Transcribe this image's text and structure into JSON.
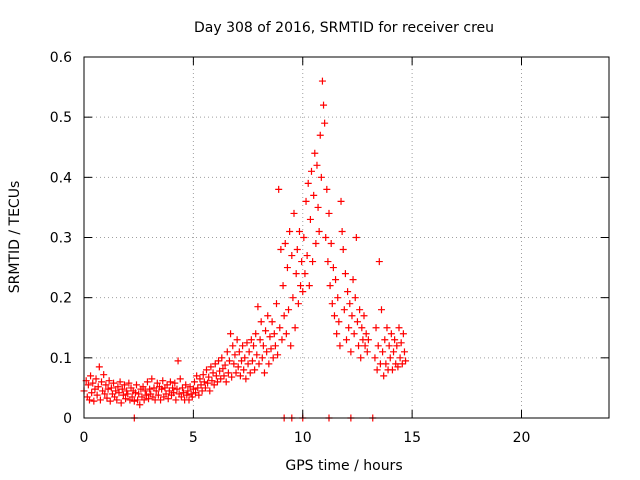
{
  "chart_data": {
    "type": "scatter",
    "title": "Day 308 of 2016, SRMTID for receiver creu",
    "xlabel": "GPS time / hours",
    "ylabel": "SRMTID / TECUs",
    "xlim": [
      0,
      24
    ],
    "ylim": [
      0,
      0.6
    ],
    "xticks": [
      0,
      5,
      10,
      15,
      20
    ],
    "xtick_labels": [
      "0",
      "5",
      "10",
      "15",
      "20"
    ],
    "yticks": [
      0,
      0.1,
      0.2,
      0.3,
      0.4,
      0.5,
      0.6
    ],
    "ytick_labels": [
      "0",
      "0.1",
      "0.2",
      "0.3",
      "0.4",
      "0.5",
      "0.6"
    ],
    "grid": true,
    "grid_style": "dotted",
    "marker": "+",
    "series": [
      {
        "name": "SRMTID",
        "color": "#ff0000",
        "points": [
          [
            0.0,
            0.045
          ],
          [
            0.1,
            0.062
          ],
          [
            0.15,
            0.035
          ],
          [
            0.2,
            0.055
          ],
          [
            0.25,
            0.03
          ],
          [
            0.3,
            0.07
          ],
          [
            0.35,
            0.042
          ],
          [
            0.4,
            0.058
          ],
          [
            0.45,
            0.028
          ],
          [
            0.5,
            0.048
          ],
          [
            0.55,
            0.065
          ],
          [
            0.6,
            0.038
          ],
          [
            0.65,
            0.052
          ],
          [
            0.7,
            0.085
          ],
          [
            0.75,
            0.03
          ],
          [
            0.8,
            0.06
          ],
          [
            0.85,
            0.045
          ],
          [
            0.9,
            0.072
          ],
          [
            0.95,
            0.04
          ],
          [
            1.0,
            0.055
          ],
          [
            1.05,
            0.033
          ],
          [
            1.1,
            0.048
          ],
          [
            1.15,
            0.062
          ],
          [
            1.2,
            0.028
          ],
          [
            1.25,
            0.05
          ],
          [
            1.3,
            0.04
          ],
          [
            1.35,
            0.058
          ],
          [
            1.4,
            0.035
          ],
          [
            1.45,
            0.045
          ],
          [
            1.5,
            0.03
          ],
          [
            1.55,
            0.052
          ],
          [
            1.6,
            0.042
          ],
          [
            1.65,
            0.06
          ],
          [
            1.7,
            0.025
          ],
          [
            1.75,
            0.048
          ],
          [
            1.8,
            0.038
          ],
          [
            1.85,
            0.055
          ],
          [
            1.9,
            0.032
          ],
          [
            1.95,
            0.045
          ],
          [
            2.0,
            0.04
          ],
          [
            2.05,
            0.058
          ],
          [
            2.1,
            0.03
          ],
          [
            2.15,
            0.05
          ],
          [
            2.2,
            0.035
          ],
          [
            2.25,
            0.045
          ],
          [
            2.3,
            0.028
          ],
          [
            2.35,
            0.042
          ],
          [
            2.4,
            0.055
          ],
          [
            2.45,
            0.03
          ],
          [
            2.5,
            0.04
          ],
          [
            2.55,
            0.022
          ],
          [
            2.6,
            0.048
          ],
          [
            2.65,
            0.035
          ],
          [
            2.7,
            0.052
          ],
          [
            2.75,
            0.03
          ],
          [
            2.8,
            0.045
          ],
          [
            2.85,
            0.038
          ],
          [
            2.9,
            0.06
          ],
          [
            2.95,
            0.032
          ],
          [
            3.0,
            0.048
          ],
          [
            3.05,
            0.04
          ],
          [
            3.1,
            0.065
          ],
          [
            3.15,
            0.035
          ],
          [
            3.2,
            0.05
          ],
          [
            3.25,
            0.03
          ],
          [
            3.3,
            0.045
          ],
          [
            3.35,
            0.058
          ],
          [
            3.4,
            0.038
          ],
          [
            3.45,
            0.052
          ],
          [
            3.5,
            0.03
          ],
          [
            3.55,
            0.048
          ],
          [
            3.6,
            0.062
          ],
          [
            3.65,
            0.035
          ],
          [
            3.7,
            0.05
          ],
          [
            3.75,
            0.04
          ],
          [
            3.8,
            0.055
          ],
          [
            3.85,
            0.032
          ],
          [
            3.9,
            0.045
          ],
          [
            3.95,
            0.06
          ],
          [
            4.0,
            0.038
          ],
          [
            4.05,
            0.05
          ],
          [
            4.1,
            0.042
          ],
          [
            4.15,
            0.058
          ],
          [
            4.2,
            0.03
          ],
          [
            4.25,
            0.048
          ],
          [
            4.3,
            0.095
          ],
          [
            4.35,
            0.04
          ],
          [
            4.4,
            0.065
          ],
          [
            4.45,
            0.035
          ],
          [
            4.5,
            0.05
          ],
          [
            4.55,
            0.042
          ],
          [
            4.6,
            0.03
          ],
          [
            4.65,
            0.055
          ],
          [
            4.7,
            0.038
          ],
          [
            4.75,
            0.045
          ],
          [
            4.8,
            0.03
          ],
          [
            4.85,
            0.052
          ],
          [
            4.9,
            0.04
          ],
          [
            4.95,
            0.035
          ],
          [
            5.0,
            0.048
          ],
          [
            5.05,
            0.06
          ],
          [
            5.1,
            0.042
          ],
          [
            5.15,
            0.07
          ],
          [
            5.2,
            0.05
          ],
          [
            5.25,
            0.038
          ],
          [
            5.3,
            0.065
          ],
          [
            5.35,
            0.055
          ],
          [
            5.4,
            0.045
          ],
          [
            5.45,
            0.072
          ],
          [
            5.5,
            0.06
          ],
          [
            5.55,
            0.05
          ],
          [
            5.6,
            0.08
          ],
          [
            5.65,
            0.058
          ],
          [
            5.7,
            0.068
          ],
          [
            5.75,
            0.045
          ],
          [
            5.8,
            0.085
          ],
          [
            5.85,
            0.062
          ],
          [
            5.9,
            0.075
          ],
          [
            5.95,
            0.055
          ],
          [
            6.0,
            0.09
          ],
          [
            6.05,
            0.07
          ],
          [
            6.1,
            0.06
          ],
          [
            6.15,
            0.095
          ],
          [
            6.2,
            0.078
          ],
          [
            6.25,
            0.065
          ],
          [
            6.3,
            0.1
          ],
          [
            6.35,
            0.082
          ],
          [
            6.4,
            0.07
          ],
          [
            6.45,
            0.088
          ],
          [
            6.5,
            0.06
          ],
          [
            6.55,
            0.11
          ],
          [
            6.6,
            0.075
          ],
          [
            6.65,
            0.095
          ],
          [
            6.7,
            0.14
          ],
          [
            6.75,
            0.068
          ],
          [
            6.8,
            0.12
          ],
          [
            6.85,
            0.09
          ],
          [
            6.9,
            0.105
          ],
          [
            6.95,
            0.075
          ],
          [
            7.0,
            0.13
          ],
          [
            7.05,
            0.085
          ],
          [
            7.1,
            0.11
          ],
          [
            7.15,
            0.07
          ],
          [
            7.2,
            0.095
          ],
          [
            7.25,
            0.12
          ],
          [
            7.3,
            0.08
          ],
          [
            7.35,
            0.1
          ],
          [
            7.4,
            0.065
          ],
          [
            7.45,
            0.125
          ],
          [
            7.5,
            0.09
          ],
          [
            7.55,
            0.11
          ],
          [
            7.6,
            0.075
          ],
          [
            7.65,
            0.13
          ],
          [
            7.7,
            0.095
          ],
          [
            7.75,
            0.12
          ],
          [
            7.8,
            0.08
          ],
          [
            7.85,
            0.14
          ],
          [
            7.9,
            0.105
          ],
          [
            7.95,
            0.185
          ],
          [
            8.0,
            0.09
          ],
          [
            8.05,
            0.13
          ],
          [
            8.1,
            0.16
          ],
          [
            8.15,
            0.1
          ],
          [
            8.2,
            0.12
          ],
          [
            8.25,
            0.075
          ],
          [
            8.3,
            0.145
          ],
          [
            8.35,
            0.11
          ],
          [
            8.4,
            0.17
          ],
          [
            8.45,
            0.09
          ],
          [
            8.5,
            0.135
          ],
          [
            8.55,
            0.115
          ],
          [
            8.6,
            0.16
          ],
          [
            8.65,
            0.1
          ],
          [
            8.7,
            0.14
          ],
          [
            8.75,
            0.12
          ],
          [
            8.8,
            0.19
          ],
          [
            8.85,
            0.105
          ],
          [
            8.9,
            0.38
          ],
          [
            8.95,
            0.15
          ],
          [
            9.0,
            0.28
          ],
          [
            9.05,
            0.13
          ],
          [
            9.1,
            0.22
          ],
          [
            9.15,
            0.17
          ],
          [
            9.2,
            0.29
          ],
          [
            9.25,
            0.14
          ],
          [
            9.3,
            0.25
          ],
          [
            9.35,
            0.18
          ],
          [
            9.4,
            0.31
          ],
          [
            9.45,
            0.12
          ],
          [
            9.5,
            0.27
          ],
          [
            9.55,
            0.2
          ],
          [
            9.6,
            0.34
          ],
          [
            9.65,
            0.15
          ],
          [
            9.7,
            0.24
          ],
          [
            9.75,
            0.28
          ],
          [
            9.8,
            0.19
          ],
          [
            9.85,
            0.31
          ],
          [
            9.9,
            0.22
          ],
          [
            9.95,
            0.26
          ],
          [
            10.0,
            0.21
          ],
          [
            10.05,
            0.3
          ],
          [
            10.1,
            0.24
          ],
          [
            10.15,
            0.36
          ],
          [
            10.2,
            0.27
          ],
          [
            10.25,
            0.39
          ],
          [
            10.3,
            0.22
          ],
          [
            10.35,
            0.33
          ],
          [
            10.4,
            0.41
          ],
          [
            10.45,
            0.26
          ],
          [
            10.5,
            0.37
          ],
          [
            10.55,
            0.44
          ],
          [
            10.6,
            0.29
          ],
          [
            10.65,
            0.42
          ],
          [
            10.7,
            0.35
          ],
          [
            10.75,
            0.31
          ],
          [
            10.8,
            0.47
          ],
          [
            10.85,
            0.4
          ],
          [
            10.9,
            0.56
          ],
          [
            10.95,
            0.52
          ],
          [
            11.0,
            0.49
          ],
          [
            11.05,
            0.3
          ],
          [
            11.1,
            0.38
          ],
          [
            11.15,
            0.26
          ],
          [
            11.2,
            0.34
          ],
          [
            11.25,
            0.22
          ],
          [
            11.3,
            0.29
          ],
          [
            11.35,
            0.19
          ],
          [
            11.4,
            0.25
          ],
          [
            11.45,
            0.17
          ],
          [
            11.5,
            0.23
          ],
          [
            11.55,
            0.14
          ],
          [
            11.6,
            0.2
          ],
          [
            11.65,
            0.16
          ],
          [
            11.7,
            0.12
          ],
          [
            11.75,
            0.36
          ],
          [
            11.8,
            0.31
          ],
          [
            11.85,
            0.28
          ],
          [
            11.9,
            0.18
          ],
          [
            11.95,
            0.24
          ],
          [
            12.0,
            0.13
          ],
          [
            12.05,
            0.21
          ],
          [
            12.1,
            0.15
          ],
          [
            12.15,
            0.19
          ],
          [
            12.2,
            0.11
          ],
          [
            12.25,
            0.17
          ],
          [
            12.3,
            0.23
          ],
          [
            12.35,
            0.14
          ],
          [
            12.4,
            0.2
          ],
          [
            12.45,
            0.3
          ],
          [
            12.5,
            0.16
          ],
          [
            12.55,
            0.12
          ],
          [
            12.6,
            0.18
          ],
          [
            12.65,
            0.1
          ],
          [
            12.7,
            0.15
          ],
          [
            12.75,
            0.13
          ],
          [
            12.8,
            0.17
          ],
          [
            12.85,
            0.12
          ],
          [
            12.9,
            0.14
          ],
          [
            12.95,
            0.11
          ],
          [
            13.0,
            0.13
          ],
          [
            13.3,
            0.1
          ],
          [
            13.35,
            0.15
          ],
          [
            13.4,
            0.08
          ],
          [
            13.45,
            0.12
          ],
          [
            13.5,
            0.26
          ],
          [
            13.55,
            0.09
          ],
          [
            13.6,
            0.18
          ],
          [
            13.65,
            0.11
          ],
          [
            13.7,
            0.07
          ],
          [
            13.75,
            0.13
          ],
          [
            13.8,
            0.09
          ],
          [
            13.85,
            0.15
          ],
          [
            13.9,
            0.08
          ],
          [
            13.95,
            0.12
          ],
          [
            14.0,
            0.1
          ],
          [
            14.05,
            0.14
          ],
          [
            14.1,
            0.08
          ],
          [
            14.15,
            0.11
          ],
          [
            14.2,
            0.13
          ],
          [
            14.25,
            0.09
          ],
          [
            14.3,
            0.12
          ],
          [
            14.35,
            0.085
          ],
          [
            14.4,
            0.15
          ],
          [
            14.45,
            0.1
          ],
          [
            14.5,
            0.125
          ],
          [
            14.55,
            0.09
          ],
          [
            14.6,
            0.14
          ],
          [
            14.65,
            0.11
          ],
          [
            14.7,
            0.095
          ],
          [
            10.0,
            0.0
          ],
          [
            11.2,
            0.0
          ],
          [
            12.2,
            0.0
          ],
          [
            13.2,
            0.0
          ],
          [
            9.5,
            0.0
          ],
          [
            9.15,
            0.0
          ],
          [
            2.3,
            0.0
          ]
        ]
      }
    ]
  }
}
